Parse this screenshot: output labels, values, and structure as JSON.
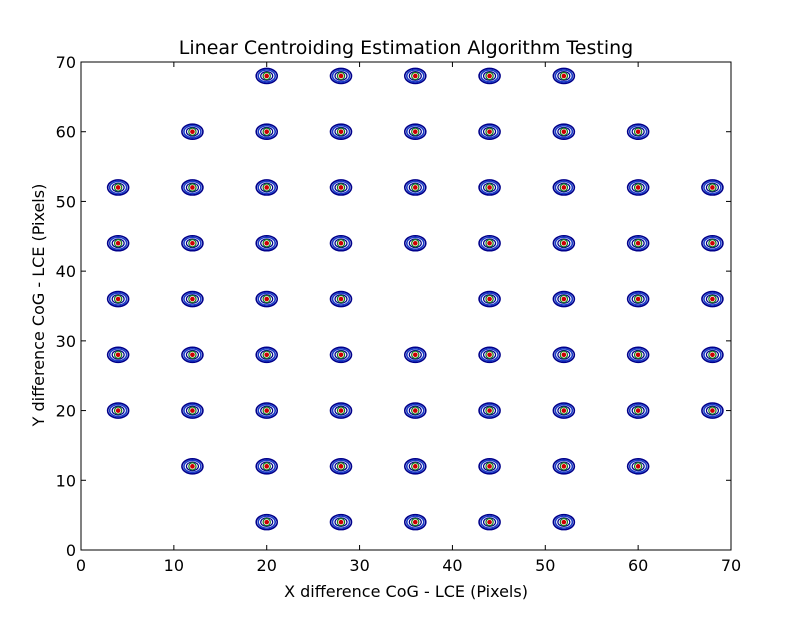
{
  "chart_data": {
    "type": "scatter",
    "title": "Linear Centroiding Estimation Algorithm Testing",
    "xlabel": "X difference CoG - LCE (Pixels)",
    "ylabel": "Y difference CoG - LCE (Pixels)",
    "xlim": [
      0,
      70
    ],
    "ylim": [
      0,
      70
    ],
    "xticks": [
      "0",
      "10",
      "20",
      "30",
      "40",
      "50",
      "60",
      "70"
    ],
    "yticks": [
      "0",
      "10",
      "20",
      "30",
      "40",
      "50",
      "60",
      "70"
    ],
    "grid": false,
    "legend": "none",
    "marker_colors": {
      "ring": "#00008b",
      "ring2": "#1a3cc8",
      "inner": "#1a7a1a",
      "center": "#cc0000"
    },
    "points": [
      {
        "x": 20,
        "y": 68
      },
      {
        "x": 28,
        "y": 68
      },
      {
        "x": 36,
        "y": 68
      },
      {
        "x": 44,
        "y": 68
      },
      {
        "x": 52,
        "y": 68
      },
      {
        "x": 12,
        "y": 60
      },
      {
        "x": 20,
        "y": 60
      },
      {
        "x": 28,
        "y": 60
      },
      {
        "x": 36,
        "y": 60
      },
      {
        "x": 44,
        "y": 60
      },
      {
        "x": 52,
        "y": 60
      },
      {
        "x": 60,
        "y": 60
      },
      {
        "x": 4,
        "y": 52
      },
      {
        "x": 12,
        "y": 52
      },
      {
        "x": 20,
        "y": 52
      },
      {
        "x": 28,
        "y": 52
      },
      {
        "x": 36,
        "y": 52
      },
      {
        "x": 44,
        "y": 52
      },
      {
        "x": 52,
        "y": 52
      },
      {
        "x": 60,
        "y": 52
      },
      {
        "x": 68,
        "y": 52
      },
      {
        "x": 4,
        "y": 44
      },
      {
        "x": 12,
        "y": 44
      },
      {
        "x": 20,
        "y": 44
      },
      {
        "x": 28,
        "y": 44
      },
      {
        "x": 36,
        "y": 44
      },
      {
        "x": 44,
        "y": 44
      },
      {
        "x": 52,
        "y": 44
      },
      {
        "x": 60,
        "y": 44
      },
      {
        "x": 68,
        "y": 44
      },
      {
        "x": 4,
        "y": 36
      },
      {
        "x": 12,
        "y": 36
      },
      {
        "x": 20,
        "y": 36
      },
      {
        "x": 28,
        "y": 36
      },
      {
        "x": 44,
        "y": 36
      },
      {
        "x": 52,
        "y": 36
      },
      {
        "x": 60,
        "y": 36
      },
      {
        "x": 68,
        "y": 36
      },
      {
        "x": 4,
        "y": 28
      },
      {
        "x": 12,
        "y": 28
      },
      {
        "x": 20,
        "y": 28
      },
      {
        "x": 28,
        "y": 28
      },
      {
        "x": 36,
        "y": 28
      },
      {
        "x": 44,
        "y": 28
      },
      {
        "x": 52,
        "y": 28
      },
      {
        "x": 60,
        "y": 28
      },
      {
        "x": 68,
        "y": 28
      },
      {
        "x": 4,
        "y": 20
      },
      {
        "x": 12,
        "y": 20
      },
      {
        "x": 20,
        "y": 20
      },
      {
        "x": 28,
        "y": 20
      },
      {
        "x": 36,
        "y": 20
      },
      {
        "x": 44,
        "y": 20
      },
      {
        "x": 52,
        "y": 20
      },
      {
        "x": 60,
        "y": 20
      },
      {
        "x": 68,
        "y": 20
      },
      {
        "x": 12,
        "y": 12
      },
      {
        "x": 20,
        "y": 12
      },
      {
        "x": 28,
        "y": 12
      },
      {
        "x": 36,
        "y": 12
      },
      {
        "x": 44,
        "y": 12
      },
      {
        "x": 52,
        "y": 12
      },
      {
        "x": 60,
        "y": 12
      },
      {
        "x": 20,
        "y": 4
      },
      {
        "x": 28,
        "y": 4
      },
      {
        "x": 36,
        "y": 4
      },
      {
        "x": 44,
        "y": 4
      },
      {
        "x": 52,
        "y": 4
      }
    ]
  }
}
